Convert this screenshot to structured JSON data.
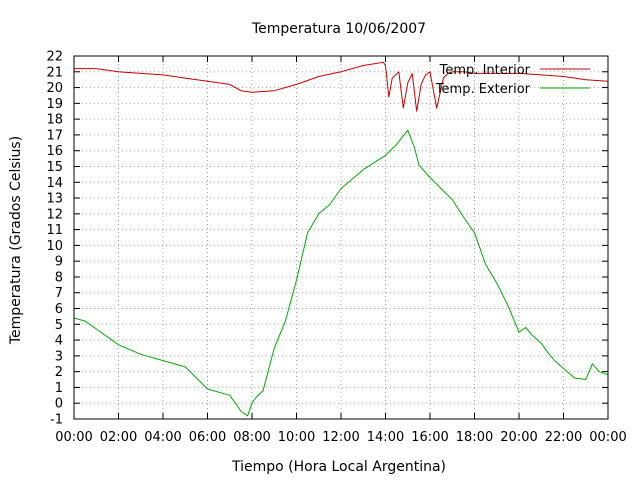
{
  "chart_data": {
    "type": "line",
    "title": "Temperatura 10/06/2007",
    "xlabel": "Tiempo (Hora Local Argentina)",
    "ylabel": "Temperatura (Grados Celsius)",
    "xlim": [
      0,
      24
    ],
    "ylim": [
      -1,
      22
    ],
    "x_ticks": [
      0,
      2,
      4,
      6,
      8,
      10,
      12,
      14,
      16,
      18,
      20,
      22,
      24
    ],
    "x_tick_labels": [
      "00:00",
      "02:00",
      "04:00",
      "06:00",
      "08:00",
      "10:00",
      "12:00",
      "14:00",
      "16:00",
      "18:00",
      "20:00",
      "22:00",
      "00:00"
    ],
    "y_ticks": [
      -1,
      0,
      1,
      2,
      3,
      4,
      5,
      6,
      7,
      8,
      9,
      10,
      11,
      12,
      13,
      14,
      15,
      16,
      17,
      18,
      19,
      20,
      21,
      22
    ],
    "y_tick_labels": [
      "-1",
      "0",
      "1",
      "2",
      "3",
      "4",
      "5",
      "6",
      "7",
      "8",
      "9",
      "10",
      "11",
      "12",
      "13",
      "14",
      "15",
      "16",
      "17",
      "18",
      "19",
      "20",
      "21",
      "22"
    ],
    "grid": true,
    "legend_position": "top-right",
    "series": [
      {
        "name": "Temp. Interior",
        "color": "#cc0000",
        "x": [
          0,
          1,
          2,
          3,
          4,
          5,
          6,
          7,
          7.5,
          8,
          9,
          10,
          11,
          12,
          13,
          13.9,
          14.0,
          14.15,
          14.3,
          14.6,
          14.8,
          15.0,
          15.2,
          15.4,
          15.6,
          15.8,
          16.0,
          16.3,
          16.6,
          16.8,
          17.0,
          17.5,
          18,
          19,
          20,
          21,
          22,
          23,
          24
        ],
        "y": [
          21.2,
          21.2,
          21.0,
          20.9,
          20.8,
          20.6,
          20.4,
          20.2,
          19.8,
          19.7,
          19.8,
          20.2,
          20.7,
          21.0,
          21.4,
          21.6,
          21.4,
          19.4,
          20.6,
          21.0,
          18.7,
          20.3,
          20.9,
          18.5,
          20.2,
          20.8,
          21.0,
          18.7,
          20.6,
          20.9,
          21.0,
          21.0,
          20.9,
          20.9,
          20.9,
          20.8,
          20.7,
          20.5,
          20.4
        ]
      },
      {
        "name": "Temp. Exterior",
        "color": "#00aa00",
        "x": [
          0,
          0.5,
          1,
          2,
          3,
          4,
          5,
          6,
          7,
          7.5,
          7.8,
          8,
          8.2,
          8.5,
          9,
          9.5,
          10,
          10.5,
          11,
          11.5,
          12,
          13,
          14,
          14.5,
          15,
          15.3,
          15.5,
          16,
          16.5,
          17,
          17.5,
          18,
          18.5,
          19,
          19.5,
          20,
          20.3,
          20.6,
          21,
          21.3,
          21.6,
          22,
          22.5,
          23,
          23.3,
          23.6,
          24
        ],
        "y": [
          5.4,
          5.2,
          4.7,
          3.7,
          3.1,
          2.7,
          2.3,
          0.9,
          0.5,
          -0.5,
          -0.8,
          0.0,
          0.4,
          0.8,
          3.5,
          5.2,
          7.8,
          10.8,
          12.0,
          12.6,
          13.6,
          14.8,
          15.7,
          16.4,
          17.3,
          16.2,
          15.1,
          14.3,
          13.6,
          12.9,
          11.8,
          10.8,
          8.8,
          7.6,
          6.2,
          4.5,
          4.8,
          4.3,
          3.8,
          3.2,
          2.7,
          2.2,
          1.6,
          1.5,
          2.5,
          2.0,
          1.8
        ]
      }
    ]
  }
}
